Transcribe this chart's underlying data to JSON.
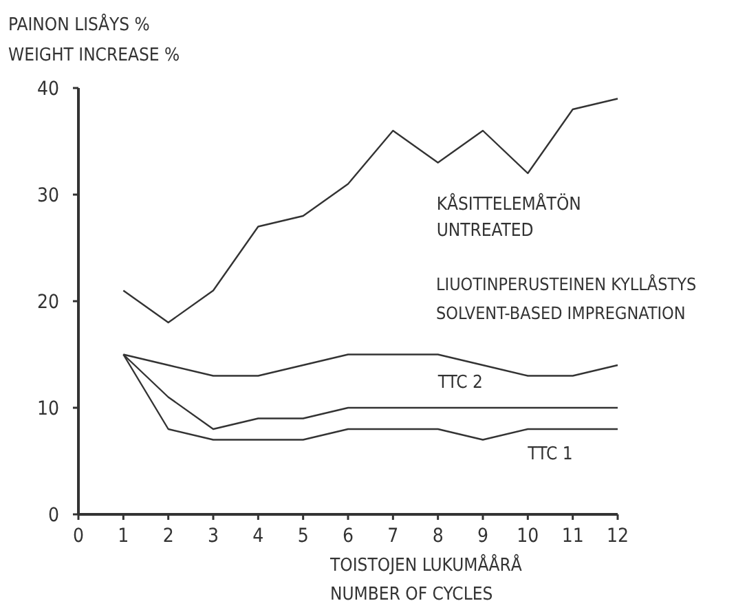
{
  "chart_data": {
    "type": "line",
    "ylabel": "PAINON LISÅYS %\nWEIGHT INCREASE %",
    "xlabel": "TOISTOJEN LUKUMÅÅRÅ\nNUMBER OF CYCLES",
    "x": [
      1,
      2,
      3,
      4,
      5,
      6,
      7,
      8,
      9,
      10,
      11,
      12
    ],
    "xlim": [
      0,
      12
    ],
    "xticks": [
      0,
      1,
      2,
      3,
      4,
      5,
      6,
      7,
      8,
      9,
      10,
      11,
      12
    ],
    "ylim": [
      0,
      40
    ],
    "yticks": [
      0,
      10,
      20,
      30,
      40
    ],
    "grid": false,
    "marker": "none",
    "line_style": "solid",
    "series": [
      {
        "name": "KÅSITTELEMÅTÖN\nUNTREATED",
        "color": "#333333",
        "values": [
          21,
          18,
          21,
          27,
          28,
          31,
          36,
          33,
          36,
          32,
          38,
          39
        ]
      },
      {
        "name": "TTC 2",
        "color": "#333333",
        "values": [
          15,
          14,
          13,
          13,
          14,
          15,
          15,
          15,
          14,
          13,
          13,
          14
        ]
      },
      {
        "color": "#333333",
        "values": [
          15,
          11,
          8,
          9,
          9,
          10,
          10,
          10,
          10,
          10,
          10,
          10
        ]
      },
      {
        "name": "TTC 1",
        "color": "#333333",
        "values": [
          15,
          8,
          7,
          7,
          7,
          8,
          8,
          8,
          7,
          8,
          8,
          8
        ]
      }
    ],
    "annotations": [
      "LIUOTINPERUSTEINEN KYLLÅSTYS\nSOLVENT-BASED IMPREGNATION"
    ]
  }
}
